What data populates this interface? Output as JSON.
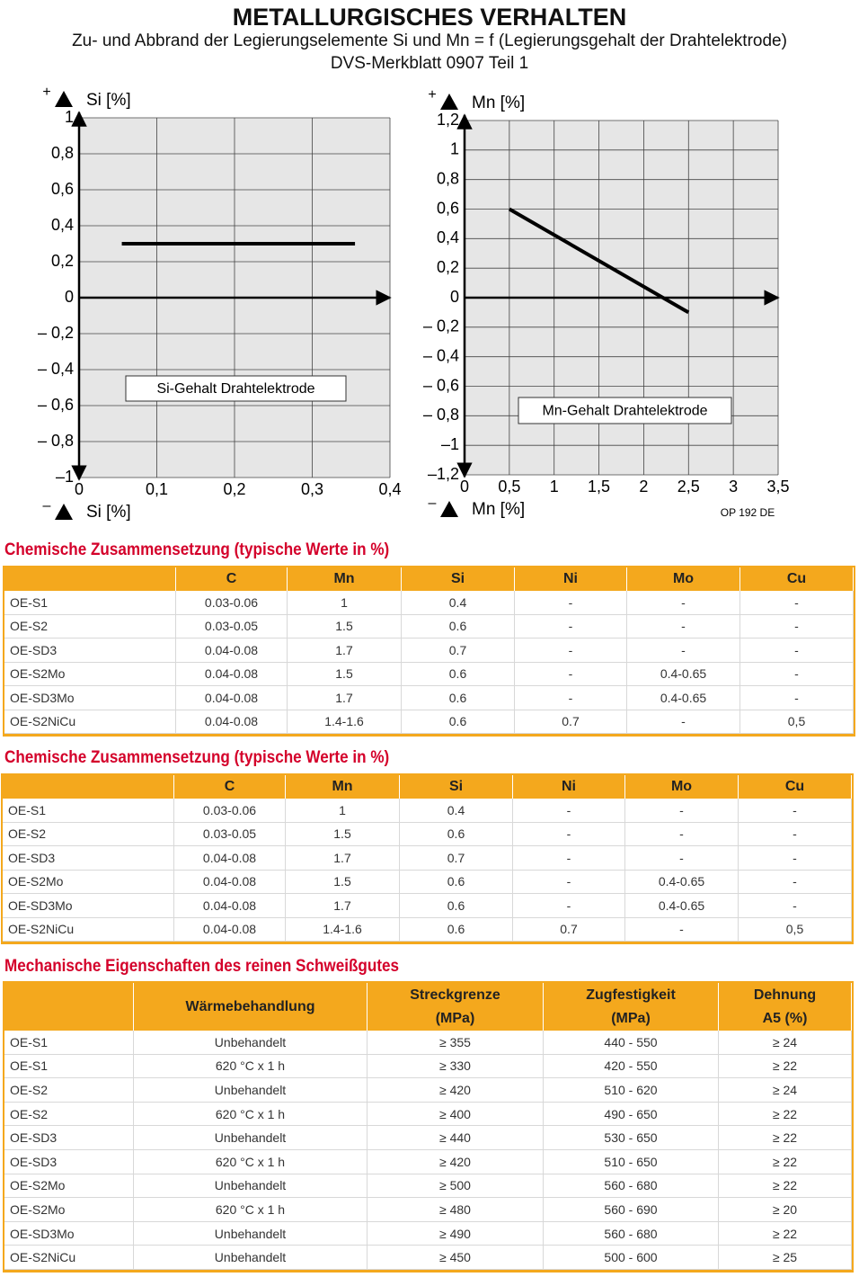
{
  "header": {
    "title": "METALLURGISCHES VERHALTEN",
    "subtitle": "Zu- und Abbrand der Legierungselemente Si und Mn = f (Legierungsgehalt der Drahtelektrode)",
    "source": "DVS-Merkblatt 0907 Teil 1"
  },
  "chart_data": [
    {
      "type": "line",
      "ylabel": "Si [%]",
      "xlabel": "Si [%]",
      "plus_sign": "+",
      "minus_sign": "–",
      "annotation": "Si-Gehalt Drahtelektrode",
      "x": [
        0.055,
        0.355
      ],
      "series": [
        {
          "color": "#000000",
          "values": [
            0.3,
            0.3
          ]
        }
      ],
      "xlim": [
        0,
        0.4
      ],
      "xticks": [
        0,
        {
          "value": 0.1,
          "label": "0,1"
        },
        {
          "value": 0.2,
          "label": "0,2"
        },
        {
          "value": 0.3,
          "label": "0,3"
        },
        {
          "value": 0.4,
          "label": "0,4"
        }
      ],
      "ylim": [
        -1,
        1
      ],
      "yticks": [
        1,
        {
          "value": 0.8,
          "label": "0,8"
        },
        {
          "value": 0.6,
          "label": "0,6"
        },
        {
          "value": 0.4,
          "label": "0,4"
        },
        {
          "value": 0.2,
          "label": "0,2"
        },
        0,
        {
          "value": -0.2,
          "label": "– 0,2"
        },
        {
          "value": -0.4,
          "label": "– 0,4"
        },
        {
          "value": -0.6,
          "label": "– 0,6"
        },
        {
          "value": -0.8,
          "label": "– 0,8"
        },
        {
          "value": -1,
          "label": "–1"
        }
      ],
      "grid": true
    },
    {
      "type": "line",
      "ylabel": "Mn [%]",
      "xlabel": "Mn [%]",
      "plus_sign": "+",
      "minus_sign": "–",
      "annotation": "Mn-Gehalt Drahtelektrode",
      "code": "OP 192 DE",
      "x": [
        0.5,
        2.5
      ],
      "series": [
        {
          "color": "#000000",
          "values": [
            0.6,
            -0.1
          ]
        }
      ],
      "xlim": [
        0,
        3.5
      ],
      "xticks": [
        0,
        {
          "value": 0.5,
          "label": "0,5"
        },
        1,
        {
          "value": 1.5,
          "label": "1,5"
        },
        2,
        {
          "value": 2.5,
          "label": "2,5"
        },
        3,
        {
          "value": 3.5,
          "label": "3,5"
        }
      ],
      "ylim": [
        -1.2,
        1.2
      ],
      "yticks": [
        {
          "value": 1.2,
          "label": "1,2"
        },
        1,
        {
          "value": 0.8,
          "label": "0,8"
        },
        {
          "value": 0.6,
          "label": "0,6"
        },
        {
          "value": 0.4,
          "label": "0,4"
        },
        {
          "value": 0.2,
          "label": "0,2"
        },
        0,
        {
          "value": -0.2,
          "label": "– 0,2"
        },
        {
          "value": -0.4,
          "label": "– 0,4"
        },
        {
          "value": -0.6,
          "label": "– 0,6"
        },
        {
          "value": -0.8,
          "label": "– 0,8"
        },
        {
          "value": -1,
          "label": "–1"
        },
        {
          "value": -1.2,
          "label": "–1,2"
        }
      ],
      "grid": true
    }
  ],
  "tables": [
    {
      "title": "Chemische Zusammensetzung (typische Werte in %)",
      "columns": [
        [
          "C"
        ],
        [
          "Mn"
        ],
        [
          "Si"
        ],
        [
          "Ni"
        ],
        [
          "Mo"
        ],
        [
          "Cu"
        ]
      ],
      "rows": [
        [
          "OE-S1",
          "0.03-0.06",
          "1",
          "0.4",
          "-",
          "-",
          "-"
        ],
        [
          "OE-S2",
          "0.03-0.05",
          "1.5",
          "0.6",
          "-",
          "-",
          "-"
        ],
        [
          "OE-SD3",
          "0.04-0.08",
          "1.7",
          "0.7",
          "-",
          "-",
          "-"
        ],
        [
          "OE-S2Mo",
          "0.04-0.08",
          "1.5",
          "0.6",
          "-",
          "0.4-0.65",
          "-"
        ],
        [
          "OE-SD3Mo",
          "0.04-0.08",
          "1.7",
          "0.6",
          "-",
          "0.4-0.65",
          "-"
        ],
        [
          "OE-S2NiCu",
          "0.04-0.08",
          "1.4-1.6",
          "0.6",
          "0.7",
          "-",
          "0,5"
        ]
      ]
    },
    {
      "title": "Chemische Zusammensetzung (typische Werte in %)",
      "columns": [
        [
          "C"
        ],
        [
          "Mn"
        ],
        [
          "Si"
        ],
        [
          "Ni"
        ],
        [
          "Mo"
        ],
        [
          "Cu"
        ]
      ],
      "rows": [
        [
          "OE-S1",
          "0.03-0.06",
          "1",
          "0.4",
          "-",
          "-",
          "-"
        ],
        [
          "OE-S2",
          "0.03-0.05",
          "1.5",
          "0.6",
          "-",
          "-",
          "-"
        ],
        [
          "OE-SD3",
          "0.04-0.08",
          "1.7",
          "0.7",
          "-",
          "-",
          "-"
        ],
        [
          "OE-S2Mo",
          "0.04-0.08",
          "1.5",
          "0.6",
          "-",
          "0.4-0.65",
          "-"
        ],
        [
          "OE-SD3Mo",
          "0.04-0.08",
          "1.7",
          "0.6",
          "-",
          "0.4-0.65",
          "-"
        ],
        [
          "OE-S2NiCu",
          "0.04-0.08",
          "1.4-1.6",
          "0.6",
          "0.7",
          "-",
          "0,5"
        ]
      ]
    },
    {
      "title": "Mechanische Eigenschaften des reinen Schweißgutes",
      "columns": [
        [
          "Wärmebehandlung"
        ],
        [
          "Streckgrenze",
          "(MPa)"
        ],
        [
          "Zugfestigkeit",
          "(MPa)"
        ],
        [
          "Dehnung",
          "A5 (%)"
        ]
      ],
      "rows": [
        [
          "OE-S1",
          "Unbehandelt",
          "≥ 355",
          "440 - 550",
          "≥ 24"
        ],
        [
          "OE-S1",
          "620 °C x 1 h",
          "≥ 330",
          "420 - 550",
          "≥ 22"
        ],
        [
          "OE-S2",
          "Unbehandelt",
          "≥ 420",
          "510 - 620",
          "≥ 24"
        ],
        [
          "OE-S2",
          "620 °C x 1 h",
          "≥ 400",
          "490 - 650",
          "≥ 22"
        ],
        [
          "OE-SD3",
          "Unbehandelt",
          "≥ 440",
          "530 - 650",
          "≥ 22"
        ],
        [
          "OE-SD3",
          "620 °C x 1 h",
          "≥ 420",
          "510 - 650",
          "≥ 22"
        ],
        [
          "OE-S2Mo",
          "Unbehandelt",
          "≥ 500",
          "560 - 680",
          "≥ 22"
        ],
        [
          "OE-S2Mo",
          "620 °C x 1 h",
          "≥ 480",
          "560 - 690",
          "≥ 20"
        ],
        [
          "OE-SD3Mo",
          "Unbehandelt",
          "≥ 490",
          "560 - 680",
          "≥ 22"
        ],
        [
          "OE-S2NiCu",
          "Unbehandelt",
          "≥ 450",
          "500 - 600",
          "≥ 25"
        ]
      ]
    }
  ]
}
